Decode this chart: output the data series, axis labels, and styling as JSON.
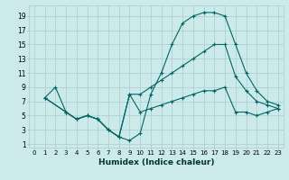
{
  "xlabel": "Humidex (Indice chaleur)",
  "bg_color": "#cceaea",
  "grid_color": "#aacccc",
  "line_color": "#006666",
  "xlim": [
    -0.5,
    23.5
  ],
  "ylim": [
    0.5,
    20.5
  ],
  "xticks": [
    0,
    1,
    2,
    3,
    4,
    5,
    6,
    7,
    8,
    9,
    10,
    11,
    12,
    13,
    14,
    15,
    16,
    17,
    18,
    19,
    20,
    21,
    22,
    23
  ],
  "yticks": [
    1,
    3,
    5,
    7,
    9,
    11,
    13,
    15,
    17,
    19
  ],
  "series": [
    {
      "x": [
        1,
        2,
        3,
        4,
        5,
        6,
        7,
        8,
        9,
        10,
        11,
        12,
        13,
        14,
        15,
        16,
        17,
        18,
        19,
        20,
        21,
        22,
        23
      ],
      "y": [
        7.5,
        9,
        5.5,
        4.5,
        5,
        4.5,
        3,
        2,
        1.5,
        2.5,
        8,
        11,
        15,
        18,
        19,
        19.5,
        19.5,
        19,
        15,
        11,
        8.5,
        7,
        6.5
      ]
    },
    {
      "x": [
        1,
        3,
        4,
        5,
        6,
        7,
        8,
        9,
        10,
        11,
        12,
        13,
        14,
        15,
        16,
        17,
        18,
        19,
        20,
        21,
        22,
        23
      ],
      "y": [
        7.5,
        5.5,
        4.5,
        5,
        4.5,
        3,
        2,
        8,
        8,
        9,
        10,
        11,
        12,
        13,
        14,
        15,
        15,
        10.5,
        8.5,
        7,
        6.5,
        6
      ]
    },
    {
      "x": [
        1,
        3,
        4,
        5,
        6,
        7,
        8,
        9,
        10,
        11,
        12,
        13,
        14,
        15,
        16,
        17,
        18,
        19,
        20,
        21,
        22,
        23
      ],
      "y": [
        7.5,
        5.5,
        4.5,
        5,
        4.5,
        3,
        2,
        8,
        5.5,
        6,
        6.5,
        7,
        7.5,
        8,
        8.5,
        8.5,
        9,
        5.5,
        5.5,
        5,
        5.5,
        6
      ]
    }
  ]
}
